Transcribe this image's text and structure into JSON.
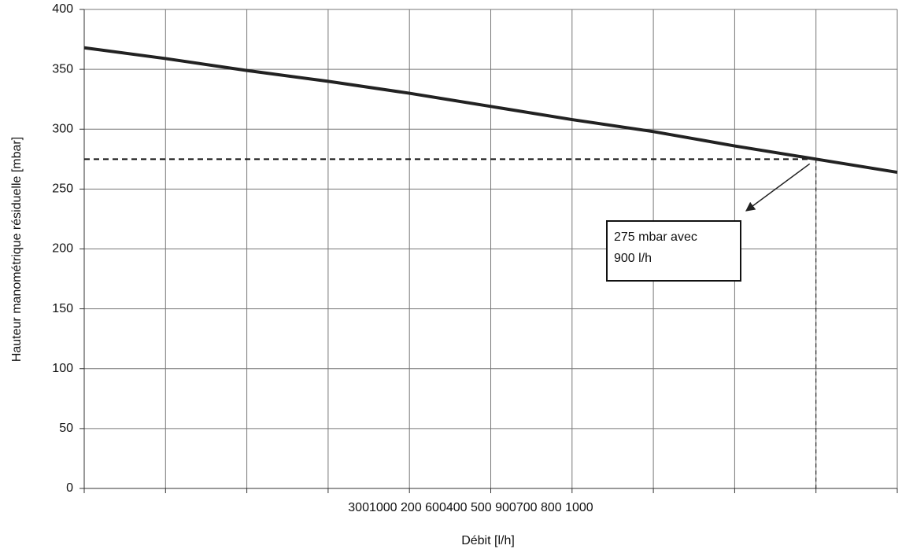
{
  "chart_data": {
    "type": "line",
    "xlabel": "Débit [l/h]",
    "ylabel": "Hauteur manométrique résiduelle [mbar]",
    "x_tick_text": "3001000 200 600400 500 900700 800 1000",
    "x": [
      0,
      100,
      200,
      300,
      400,
      500,
      600,
      700,
      800,
      900,
      1000
    ],
    "series": [
      {
        "color": "#222222",
        "values": [
          368,
          359,
          349,
          340,
          330,
          319,
          308,
          298,
          286,
          275,
          264
        ]
      }
    ],
    "xlim": [
      0,
      1000
    ],
    "xticks": [
      0,
      100,
      200,
      300,
      400,
      500,
      600,
      700,
      800,
      900,
      1000
    ],
    "ylim": [
      0,
      400
    ],
    "yticks": [
      0,
      50,
      100,
      150,
      200,
      250,
      300,
      350,
      400
    ],
    "grid": true,
    "annotation": {
      "lines": [
        "275 mbar avec",
        "900 l/h"
      ],
      "x": 900,
      "y": 275
    }
  }
}
